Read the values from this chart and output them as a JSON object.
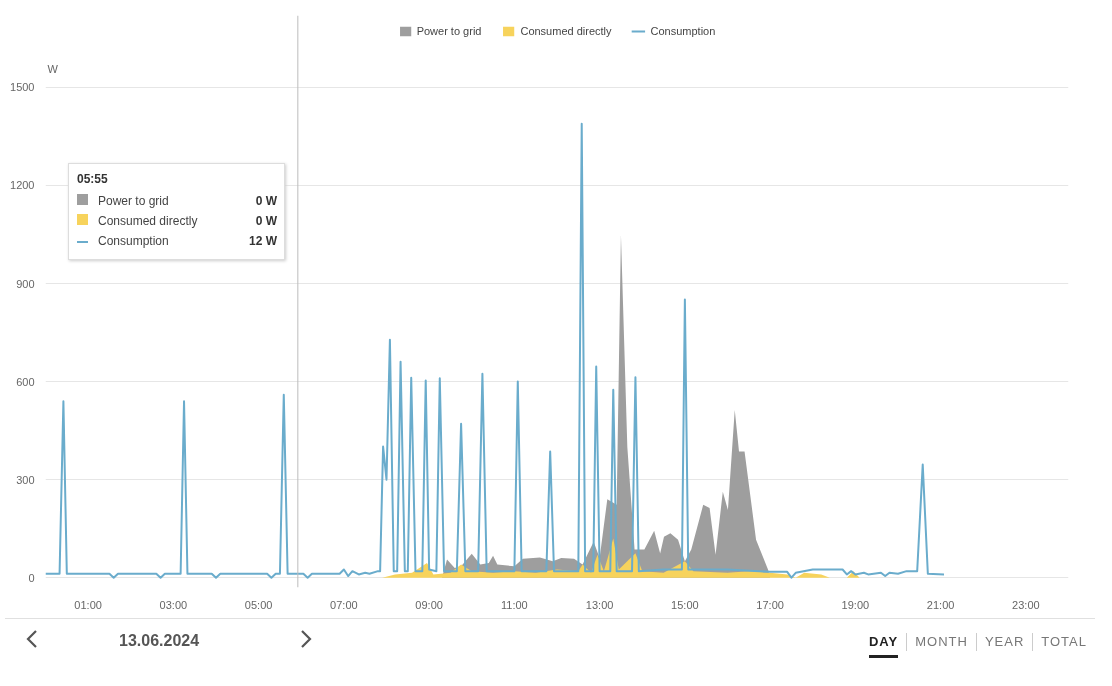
{
  "chart_data": {
    "type": "line",
    "subtitle": "13.06.2024",
    "ylabel": "W",
    "xlim": [
      0,
      24
    ],
    "ylim": [
      -30,
      1720
    ],
    "xticks": [
      {
        "value": 1,
        "label": "01:00"
      },
      {
        "value": 3,
        "label": "03:00"
      },
      {
        "value": 5,
        "label": "05:00"
      },
      {
        "value": 7,
        "label": "07:00"
      },
      {
        "value": 9,
        "label": "09:00"
      },
      {
        "value": 11,
        "label": "11:00"
      },
      {
        "value": 13,
        "label": "13:00"
      },
      {
        "value": 15,
        "label": "15:00"
      },
      {
        "value": 17,
        "label": "17:00"
      },
      {
        "value": 19,
        "label": "19:00"
      },
      {
        "value": 21,
        "label": "21:00"
      },
      {
        "value": 23,
        "label": "23:00"
      }
    ],
    "yticks": [
      0,
      300,
      600,
      900,
      1200,
      1500
    ],
    "grid": "y",
    "legend": "top",
    "ref_lines": [
      {
        "axis": "x",
        "value": 5.92,
        "label": null,
        "color": "#bdbdbd"
      }
    ],
    "annotations": [
      "05:55",
      "Power to grid",
      "0 W",
      "Consumed directly",
      "0 W",
      "Consumption",
      "12 W",
      "DAY",
      "MONTH",
      "YEAR",
      "TOTAL"
    ],
    "series": [
      {
        "name": "Power to grid",
        "type": "area",
        "color": "#9e9e9e",
        "x": [
          9.3,
          9.42,
          9.6,
          9.75,
          10.0,
          10.2,
          10.4,
          10.5,
          10.6,
          11.0,
          11.2,
          11.6,
          11.9,
          12.1,
          12.4,
          12.6,
          12.86,
          13.0,
          13.18,
          13.4,
          13.5,
          13.65,
          13.82,
          14.05,
          14.28,
          14.42,
          14.51,
          14.66,
          14.84,
          15.0,
          15.15,
          15.43,
          15.58,
          15.72,
          15.89,
          16.01,
          16.17,
          16.27,
          16.4,
          16.67,
          16.95,
          17.0
        ],
        "values": [
          0,
          56,
          30,
          35,
          73,
          40,
          45,
          67,
          40,
          35,
          58,
          62,
          50,
          60,
          58,
          40,
          110,
          60,
          240,
          223,
          1049,
          400,
          86,
          86,
          144,
          74,
          125,
          136,
          116,
          50,
          86,
          223,
          213,
          70,
          263,
          207,
          513,
          386,
          386,
          116,
          25,
          0
        ]
      },
      {
        "name": "Consumed directly",
        "type": "area",
        "color": "#f7d35c",
        "x": [
          7.9,
          8.2,
          8.6,
          8.95,
          9.1,
          9.5,
          9.75,
          10.0,
          10.5,
          11.0,
          11.5,
          12.0,
          12.5,
          12.6,
          12.8,
          12.95,
          13.1,
          13.32,
          13.45,
          13.84,
          14.0,
          14.5,
          15.0,
          15.2,
          16.0,
          16.5,
          17.0,
          17.4,
          17.6,
          17.8,
          18.2,
          18.4,
          18.8,
          18.95,
          19.1
        ],
        "values": [
          0,
          10,
          15,
          45,
          10,
          15,
          40,
          20,
          15,
          20,
          15,
          25,
          20,
          40,
          15,
          70,
          20,
          120,
          25,
          75,
          20,
          15,
          50,
          20,
          15,
          20,
          15,
          10,
          0,
          15,
          10,
          0,
          0,
          20,
          0
        ]
      },
      {
        "name": "Consumption",
        "color": "#6aaccc",
        "x": [
          0.0,
          0.33,
          0.42,
          0.5,
          1.5,
          1.6,
          1.7,
          2.6,
          2.7,
          2.8,
          3.17,
          3.25,
          3.33,
          3.9,
          4.0,
          4.1,
          5.2,
          5.3,
          5.4,
          5.5,
          5.59,
          5.68,
          5.92,
          6.05,
          6.15,
          6.25,
          6.9,
          7.0,
          7.1,
          7.2,
          7.35,
          7.5,
          7.6,
          7.8,
          7.85,
          7.92,
          8.0,
          8.08,
          8.17,
          8.25,
          8.33,
          8.43,
          8.5,
          8.58,
          8.68,
          8.84,
          8.92,
          9.0,
          9.17,
          9.25,
          9.35,
          9.65,
          9.75,
          9.85,
          10.15,
          10.25,
          10.35,
          11.0,
          11.08,
          11.17,
          11.75,
          11.84,
          11.93,
          12.5,
          12.58,
          12.66,
          12.85,
          12.92,
          13.0,
          13.25,
          13.32,
          13.4,
          13.76,
          13.84,
          13.92,
          14.5,
          14.93,
          15.0,
          15.08,
          16.0,
          17.0,
          17.4,
          17.5,
          17.6,
          18.0,
          18.7,
          18.8,
          18.9,
          19.0,
          19.2,
          19.3,
          19.6,
          19.7,
          19.8,
          20.0,
          20.2,
          20.45,
          20.58,
          20.7,
          21.08
        ],
        "values": [
          12,
          12,
          540,
          12,
          12,
          0,
          12,
          12,
          0,
          12,
          12,
          540,
          12,
          12,
          0,
          12,
          12,
          0,
          12,
          12,
          560,
          12,
          12,
          12,
          0,
          12,
          12,
          25,
          5,
          20,
          10,
          15,
          12,
          20,
          20,
          401,
          300,
          728,
          20,
          20,
          661,
          20,
          20,
          612,
          20,
          20,
          603,
          25,
          20,
          610,
          20,
          20,
          471,
          20,
          20,
          624,
          20,
          20,
          600,
          20,
          20,
          386,
          20,
          20,
          1389,
          20,
          20,
          646,
          20,
          20,
          575,
          20,
          20,
          613,
          20,
          25,
          25,
          851,
          25,
          25,
          18,
          18,
          0,
          15,
          25,
          25,
          10,
          20,
          10,
          15,
          10,
          15,
          5,
          15,
          12,
          20,
          20,
          346,
          12,
          10
        ]
      }
    ]
  }
}
